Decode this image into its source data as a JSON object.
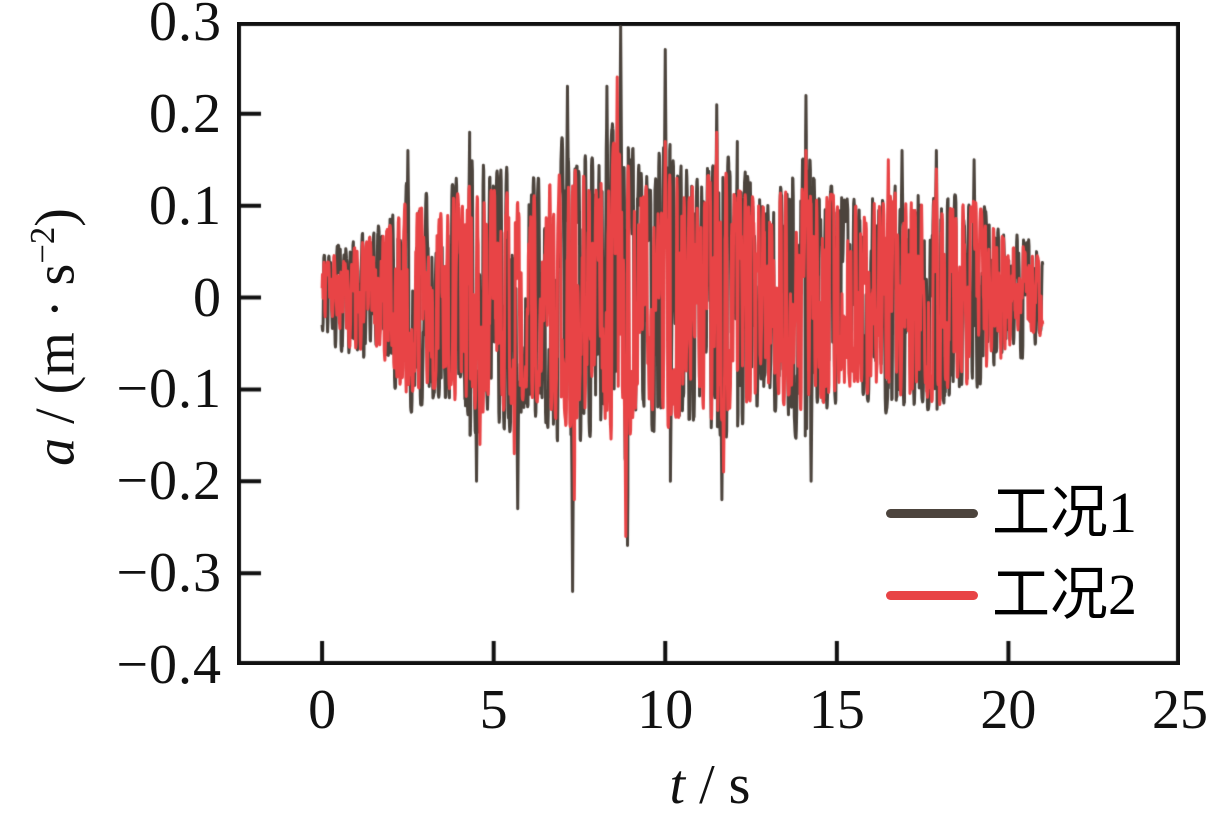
{
  "figure": {
    "background": "#ffffff",
    "frame_color": "#111111"
  },
  "chart_data": {
    "type": "line",
    "title": "",
    "xlabel": {
      "var": "t",
      "rest": " / s"
    },
    "ylabel": {
      "var": "a",
      "rest": " / (m · s",
      "sup": "−2",
      "close": ")"
    },
    "xlim": [
      -2.48,
      25
    ],
    "ylim": [
      -0.4,
      0.3
    ],
    "x_ticks": [
      0,
      5,
      10,
      15,
      20,
      25
    ],
    "x_tick_labels": [
      "0",
      "5",
      "10",
      "15",
      "20",
      "25"
    ],
    "y_ticks": [
      0.3,
      0.2,
      0.1,
      0,
      -0.1,
      -0.2,
      -0.3,
      -0.4
    ],
    "y_tick_labels": [
      "0.3",
      "0.2",
      "0.1",
      "0",
      "−0.1",
      "−0.2",
      "−0.3",
      "−0.4"
    ],
    "grid": false,
    "frame_color": "#111111",
    "legend": {
      "position": "lower-right"
    },
    "signal": {
      "t_start": 0,
      "t_end": 21,
      "dt": 0.01,
      "seed": 20240717
    },
    "series": [
      {
        "name": "工况1",
        "color": "#4c443d",
        "envelope": [
          [
            0,
            0.045
          ],
          [
            0.5,
            0.06
          ],
          [
            1,
            0.07
          ],
          [
            1.5,
            0.08
          ],
          [
            2,
            0.09
          ],
          [
            2.5,
            0.13
          ],
          [
            3,
            0.12
          ],
          [
            3.5,
            0.11
          ],
          [
            4,
            0.14
          ],
          [
            4.5,
            0.16
          ],
          [
            5,
            0.14
          ],
          [
            5.5,
            0.15
          ],
          [
            6,
            0.13
          ],
          [
            6.5,
            0.14
          ],
          [
            7,
            0.18
          ],
          [
            7.5,
            0.16
          ],
          [
            8,
            0.15
          ],
          [
            8.5,
            0.2
          ],
          [
            9,
            0.17
          ],
          [
            9.5,
            0.14
          ],
          [
            10,
            0.18
          ],
          [
            10.5,
            0.15
          ],
          [
            11,
            0.14
          ],
          [
            11.5,
            0.17
          ],
          [
            12,
            0.15
          ],
          [
            12.5,
            0.14
          ],
          [
            13,
            0.12
          ],
          [
            13.5,
            0.13
          ],
          [
            14,
            0.17
          ],
          [
            14.5,
            0.13
          ],
          [
            15,
            0.12
          ],
          [
            15.5,
            0.11
          ],
          [
            16,
            0.12
          ],
          [
            16.5,
            0.13
          ],
          [
            17,
            0.13
          ],
          [
            17.5,
            0.12
          ],
          [
            18,
            0.13
          ],
          [
            18.5,
            0.11
          ],
          [
            19,
            0.12
          ],
          [
            19.5,
            0.09
          ],
          [
            20,
            0.08
          ],
          [
            20.5,
            0.07
          ],
          [
            21,
            0.045
          ]
        ],
        "spikes": [
          [
            2.5,
            0.16
          ],
          [
            4.3,
            0.18
          ],
          [
            4.5,
            -0.2
          ],
          [
            5.7,
            -0.23
          ],
          [
            7.15,
            0.23
          ],
          [
            7.3,
            -0.32
          ],
          [
            8.3,
            0.23
          ],
          [
            8.7,
            0.295
          ],
          [
            8.9,
            -0.27
          ],
          [
            10,
            0.27
          ],
          [
            10.15,
            -0.2
          ],
          [
            11.5,
            0.21
          ],
          [
            11.65,
            -0.22
          ],
          [
            12.1,
            0.17
          ],
          [
            14.1,
            0.22
          ],
          [
            14.25,
            -0.2
          ],
          [
            16.9,
            0.16
          ],
          [
            17.9,
            0.16
          ],
          [
            19,
            0.15
          ]
        ]
      },
      {
        "name": "工况2",
        "color": "#e84446",
        "envelope": [
          [
            0,
            0.04
          ],
          [
            0.5,
            0.05
          ],
          [
            1,
            0.06
          ],
          [
            1.5,
            0.07
          ],
          [
            2,
            0.08
          ],
          [
            2.5,
            0.11
          ],
          [
            3,
            0.1
          ],
          [
            3.5,
            0.1
          ],
          [
            4,
            0.12
          ],
          [
            4.5,
            0.13
          ],
          [
            5,
            0.12
          ],
          [
            5.5,
            0.13
          ],
          [
            6,
            0.11
          ],
          [
            6.5,
            0.12
          ],
          [
            7,
            0.15
          ],
          [
            7.5,
            0.14
          ],
          [
            8,
            0.13
          ],
          [
            8.5,
            0.17
          ],
          [
            9,
            0.15
          ],
          [
            9.5,
            0.12
          ],
          [
            10,
            0.15
          ],
          [
            10.5,
            0.13
          ],
          [
            11,
            0.12
          ],
          [
            11.5,
            0.15
          ],
          [
            12,
            0.13
          ],
          [
            12.5,
            0.12
          ],
          [
            13,
            0.11
          ],
          [
            13.5,
            0.12
          ],
          [
            14,
            0.14
          ],
          [
            14.5,
            0.12
          ],
          [
            15,
            0.11
          ],
          [
            15.5,
            0.1
          ],
          [
            16,
            0.11
          ],
          [
            16.5,
            0.12
          ],
          [
            17,
            0.12
          ],
          [
            17.5,
            0.11
          ],
          [
            18,
            0.12
          ],
          [
            18.5,
            0.1
          ],
          [
            19,
            0.11
          ],
          [
            19.5,
            0.08
          ],
          [
            20,
            0.07
          ],
          [
            20.5,
            0.06
          ],
          [
            21,
            0.04
          ]
        ],
        "spikes": [
          [
            4.6,
            -0.16
          ],
          [
            5.6,
            -0.17
          ],
          [
            7.35,
            -0.22
          ],
          [
            8.6,
            0.24
          ],
          [
            8.85,
            -0.26
          ],
          [
            10,
            0.17
          ],
          [
            11.5,
            0.18
          ],
          [
            11.7,
            -0.19
          ],
          [
            14.1,
            0.16
          ],
          [
            16.5,
            0.15
          ],
          [
            17.9,
            0.14
          ]
        ]
      }
    ]
  }
}
